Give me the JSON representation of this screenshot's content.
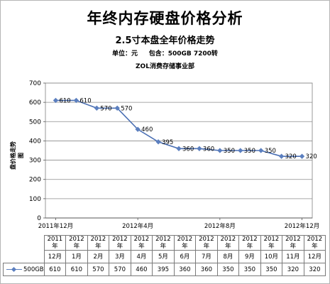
{
  "title": "年终内存硬盘价格分析",
  "subtitle": "2.5寸本盘全年价格走势",
  "unit_line": "单位：元     包含：500GB 7200转",
  "dept_line": "ZOL消费存储事业部",
  "y_axis_label": "盘价格走势图",
  "colors": {
    "line": "#4a6fb3",
    "marker": "#5b7fbf",
    "grid": "#8c8c8c"
  },
  "chart_data": {
    "type": "line",
    "categories": [
      "2011年12月",
      "2012年1月",
      "2012年2月",
      "2012年3月",
      "2012年4月",
      "2012年5月",
      "2012年6月",
      "2012年7月",
      "2012年8月",
      "2012年9月",
      "2012年10月",
      "2012年11月",
      "2012年12月"
    ],
    "series": [
      {
        "name": "500GB",
        "values": [
          610,
          610,
          570,
          570,
          460,
          395,
          360,
          360,
          350,
          350,
          350,
          320,
          320
        ]
      }
    ],
    "ylim": [
      0,
      700
    ],
    "yticks": [
      0,
      100,
      200,
      300,
      400,
      500,
      600,
      700
    ],
    "x_axis_labels": [
      "2011年12月",
      "2012年4月",
      "2012年8月",
      "2012年12月"
    ],
    "grid": true,
    "data_labels": true
  },
  "table": {
    "header_rows": [
      [
        "2011年",
        "2012年",
        "2012年",
        "2012年",
        "2012年",
        "2012年",
        "2012年",
        "2012年",
        "2012年",
        "2012年",
        "2012年",
        "2012年",
        "2012年"
      ],
      [
        "12月",
        "1月",
        "2月",
        "3月",
        "4月",
        "5月",
        "6月",
        "7月",
        "8月",
        "9月",
        "10月",
        "11月",
        "12月"
      ]
    ],
    "series_label": "500GB",
    "values": [
      "610",
      "610",
      "570",
      "570",
      "460",
      "395",
      "360",
      "360",
      "350",
      "350",
      "350",
      "320",
      "320"
    ]
  }
}
